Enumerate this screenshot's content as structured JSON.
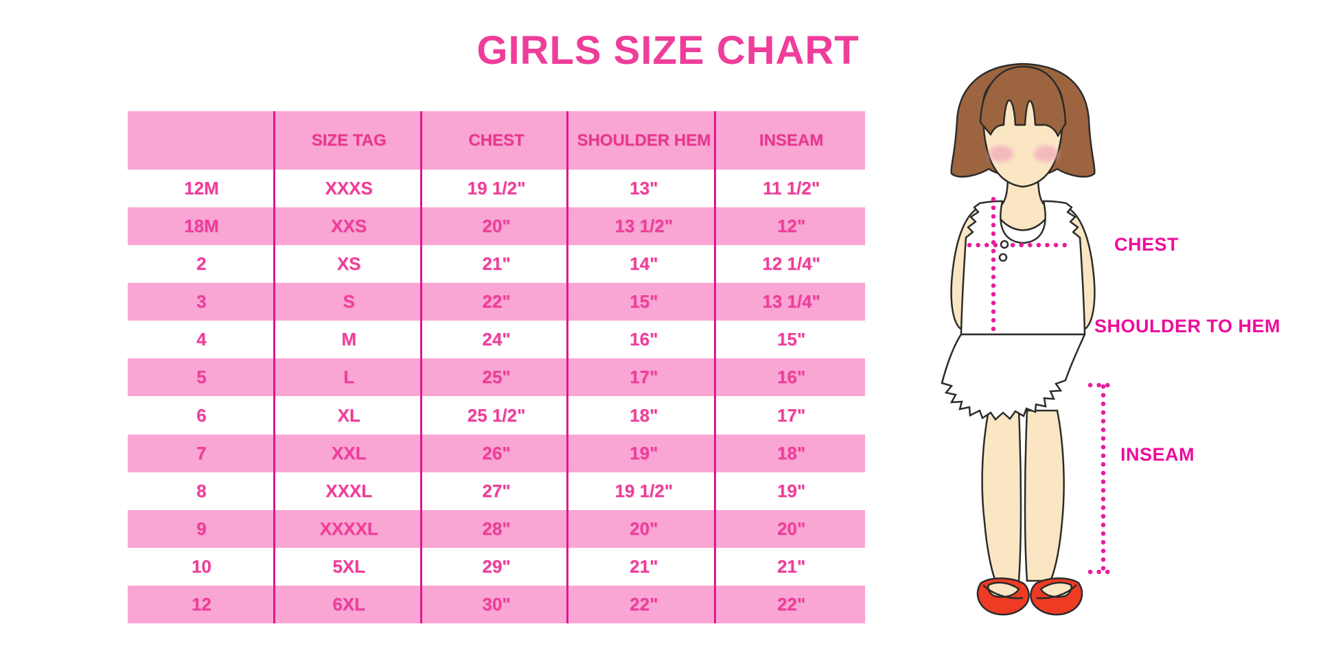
{
  "title": "GIRLS SIZE CHART",
  "colors": {
    "title_pink": "#ee3d9a",
    "row_pink": "#f9a6d4",
    "divider_magenta": "#e0158c",
    "cell_text_pink": "#ee3d9a",
    "figure_label_magenta": "#ed0c9d",
    "dotted_line_magenta": "#ea1b9d",
    "hair_brown": "#9c6540",
    "skin": "#fbe6c3",
    "shoe_red": "#ee3b24"
  },
  "chart_data": {
    "type": "table",
    "title": "GIRLS SIZE CHART",
    "columns": [
      "",
      "SIZE TAG",
      "CHEST",
      "SHOULDER HEM",
      "INSEAM"
    ],
    "rows": [
      [
        "12M",
        "XXXS",
        "19 1/2\"",
        "13\"",
        "11 1/2\""
      ],
      [
        "18M",
        "XXS",
        "20\"",
        "13 1/2\"",
        "12\""
      ],
      [
        "2",
        "XS",
        "21\"",
        "14\"",
        "12 1/4\""
      ],
      [
        "3",
        "S",
        "22\"",
        "15\"",
        "13 1/4\""
      ],
      [
        "4",
        "M",
        "24\"",
        "16\"",
        "15\""
      ],
      [
        "5",
        "L",
        "25\"",
        "17\"",
        "16\""
      ],
      [
        "6",
        "XL",
        "25 1/2\"",
        "18\"",
        "17\""
      ],
      [
        "7",
        "XXL",
        "26\"",
        "19\"",
        "18\""
      ],
      [
        "8",
        "XXXL",
        "27\"",
        "19 1/2\"",
        "19\""
      ],
      [
        "9",
        "XXXXL",
        "28\"",
        "20\"",
        "20\""
      ],
      [
        "10",
        "5XL",
        "29\"",
        "21\"",
        "21\""
      ],
      [
        "12",
        "6XL",
        "30\"",
        "22\"",
        "22\""
      ]
    ]
  },
  "figure": {
    "labels": {
      "chest": "CHEST",
      "shoulder_to_hem": "SHOULDER TO HEM",
      "inseam": "INSEAM"
    }
  }
}
